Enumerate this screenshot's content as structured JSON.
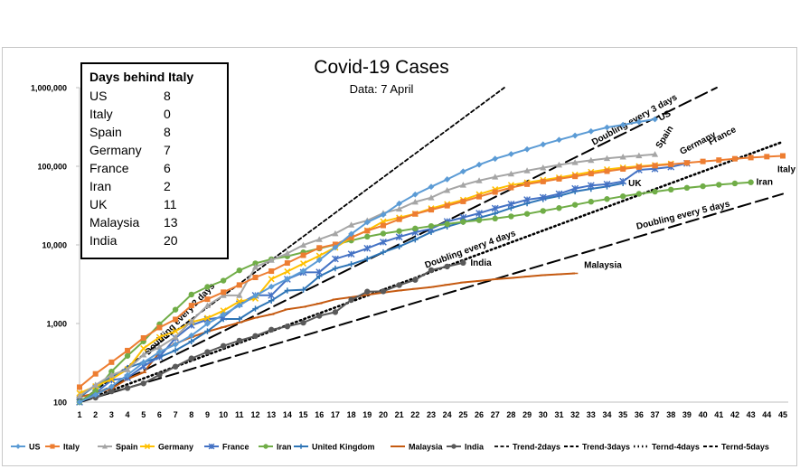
{
  "chart_data": {
    "type": "line",
    "title": "Covid-19 Cases",
    "subtitle": "Data: 7 April",
    "xlabel": "",
    "ylabel": "",
    "yscale": "log",
    "ylim": [
      100,
      1000000
    ],
    "xlim": [
      1,
      45
    ],
    "x": [
      1,
      2,
      3,
      4,
      5,
      6,
      7,
      8,
      9,
      10,
      11,
      12,
      13,
      14,
      15,
      16,
      17,
      18,
      19,
      20,
      21,
      22,
      23,
      24,
      25,
      26,
      27,
      28,
      29,
      30,
      31,
      32,
      33,
      34,
      35,
      36,
      37,
      38,
      39,
      40,
      41,
      42,
      43,
      44,
      45
    ],
    "y_ticks": [
      {
        "value": 100,
        "label": "100"
      },
      {
        "value": 1000,
        "label": "1,000"
      },
      {
        "value": 10000,
        "label": "10,000"
      },
      {
        "value": 100000,
        "label": "100,000"
      },
      {
        "value": 1000000,
        "label": "1,000,000"
      }
    ],
    "series": [
      {
        "name": "US",
        "color": "#5B9BD5",
        "marker": "diamond",
        "label": "US",
        "x": [
          1,
          2,
          3,
          4,
          5,
          6,
          7,
          8,
          9,
          10,
          11,
          12,
          13,
          14,
          15,
          16,
          17,
          18,
          19,
          20,
          21,
          22,
          23,
          24,
          25,
          26,
          27,
          28,
          29,
          30,
          31,
          32,
          33,
          34,
          35,
          36,
          37
        ],
        "values": [
          100,
          124,
          158,
          221,
          319,
          435,
          541,
          704,
          994,
          1301,
          1697,
          2247,
          2943,
          3680,
          4663,
          6411,
          9259,
          13789,
          19383,
          24207,
          33546,
          43734,
          54856,
          68211,
          85840,
          104686,
          124686,
          143025,
          164620,
          189618,
          216721,
          245540,
          278458,
          312245,
          337072,
          366667,
          396223
        ]
      },
      {
        "name": "Italy",
        "color": "#ED7D31",
        "marker": "square",
        "label": "Italy",
        "x": [
          1,
          2,
          3,
          4,
          5,
          6,
          7,
          8,
          9,
          10,
          11,
          12,
          13,
          14,
          15,
          16,
          17,
          18,
          19,
          20,
          21,
          22,
          23,
          24,
          25,
          26,
          27,
          28,
          29,
          30,
          31,
          32,
          33,
          34,
          35,
          36,
          37,
          38,
          39,
          40,
          41,
          42,
          43,
          44,
          45
        ],
        "values": [
          155,
          229,
          322,
          453,
          655,
          888,
          1128,
          1694,
          2036,
          2502,
          3089,
          3858,
          4636,
          5883,
          7375,
          9172,
          10149,
          12462,
          15113,
          17660,
          21157,
          24747,
          27980,
          31506,
          35713,
          41035,
          47021,
          53578,
          59138,
          63927,
          69176,
          74386,
          80589,
          86498,
          92472,
          97689,
          101739,
          105792,
          110574,
          115242,
          119827,
          124632,
          128948,
          132547,
          135586
        ]
      },
      {
        "name": "Spain",
        "color": "#A5A5A5",
        "marker": "triangle",
        "label": "Spain",
        "x": [
          1,
          2,
          3,
          4,
          5,
          6,
          7,
          8,
          9,
          10,
          11,
          12,
          13,
          14,
          15,
          16,
          17,
          18,
          19,
          20,
          21,
          22,
          23,
          24,
          25,
          26,
          27,
          28,
          29,
          30,
          31,
          32,
          33,
          34,
          35,
          36,
          37
        ],
        "values": [
          120,
          165,
          222,
          259,
          400,
          500,
          673,
          1073,
          1695,
          2277,
          2277,
          5232,
          6391,
          7798,
          9942,
          11748,
          13910,
          17963,
          20410,
          25374,
          28603,
          35136,
          39885,
          49515,
          57786,
          65719,
          73235,
          80110,
          87956,
          95923,
          104118,
          112065,
          119199,
          126168,
          131646,
          136675,
          141942
        ]
      },
      {
        "name": "Germany",
        "color": "#FFC000",
        "marker": "x",
        "label": "Germany",
        "x": [
          1,
          2,
          3,
          4,
          5,
          6,
          7,
          8,
          9,
          10,
          11,
          12,
          13,
          14,
          15,
          16,
          17,
          18,
          19,
          20,
          21,
          22,
          23,
          24,
          25,
          26,
          27,
          28,
          29,
          30,
          31,
          32,
          33,
          34,
          35,
          36,
          37,
          38
        ],
        "values": [
          130,
          159,
          196,
          262,
          482,
          670,
          799,
          1040,
          1176,
          1457,
          1908,
          2078,
          3675,
          4585,
          5795,
          7272,
          9257,
          12327,
          15320,
          19848,
          22213,
          24873,
          29056,
          32986,
          37323,
          43938,
          50871,
          57695,
          62095,
          66885,
          71808,
          77872,
          84794,
          91159,
          96092,
          100123,
          103374,
          107663
        ]
      },
      {
        "name": "France",
        "color": "#4472C4",
        "marker": "star",
        "label": "France",
        "x": [
          1,
          2,
          3,
          4,
          5,
          6,
          7,
          8,
          9,
          10,
          11,
          12,
          13,
          14,
          15,
          16,
          17,
          18,
          19,
          20,
          21,
          22,
          23,
          24,
          25,
          26,
          27,
          28,
          29,
          30,
          31,
          32,
          33,
          34,
          35,
          36,
          37,
          38,
          39
        ],
        "values": [
          100,
          130,
          191,
          204,
          285,
          377,
          653,
          949,
          1126,
          1209,
          1784,
          2281,
          2281,
          3661,
          4469,
          4499,
          6633,
          7652,
          9043,
          10871,
          12612,
          14459,
          16018,
          19856,
          22304,
          25233,
          29155,
          32964,
          37575,
          40174,
          44550,
          52128,
          56989,
          59105,
          64338,
          89953,
          92839,
          98010,
          109069
        ]
      },
      {
        "name": "Iran",
        "color": "#70AD47",
        "marker": "circle",
        "label": "Iran",
        "x": [
          1,
          2,
          3,
          4,
          5,
          6,
          7,
          8,
          9,
          10,
          11,
          12,
          13,
          14,
          15,
          16,
          17,
          18,
          19,
          20,
          21,
          22,
          23,
          24,
          25,
          26,
          27,
          28,
          29,
          30,
          31,
          32,
          33,
          34,
          35,
          36,
          37,
          38,
          39,
          40,
          41,
          42,
          43
        ],
        "values": [
          100,
          139,
          245,
          388,
          593,
          978,
          1501,
          2336,
          2922,
          3513,
          4747,
          5823,
          6566,
          7161,
          8042,
          9000,
          10075,
          11364,
          12729,
          13938,
          14991,
          16169,
          17361,
          18407,
          19644,
          20610,
          21638,
          23049,
          24811,
          27017,
          29406,
          32332,
          35408,
          38309,
          41495,
          44605,
          47593,
          50468,
          53183,
          55743,
          58226,
          60500,
          62589
        ]
      },
      {
        "name": "United Kingdom",
        "color": "#2E75B6",
        "marker": "plus",
        "label": "UK",
        "x": [
          1,
          2,
          3,
          4,
          5,
          6,
          7,
          8,
          9,
          10,
          11,
          12,
          13,
          14,
          15,
          16,
          17,
          18,
          19,
          20,
          21,
          22,
          23,
          24,
          25,
          26,
          27,
          28,
          29,
          30,
          31,
          32,
          33,
          34,
          35
        ],
        "values": [
          115,
          163,
          206,
          273,
          321,
          373,
          456,
          590,
          798,
          1140,
          1140,
          1543,
          1950,
          2626,
          2689,
          3983,
          5018,
          5683,
          6650,
          8077,
          9529,
          11658,
          14543,
          17089,
          19522,
          22141,
          25150,
          29474,
          33718,
          38168,
          41903,
          47806,
          51608,
          55242,
          60733
        ]
      },
      {
        "name": "Malaysia",
        "color": "#C55A11",
        "marker": "dash",
        "label": "Malaysia",
        "x": [
          1,
          2,
          3,
          4,
          5,
          6,
          7,
          8,
          9,
          10,
          11,
          12,
          13,
          14,
          15,
          16,
          17,
          18,
          19,
          20,
          21,
          22,
          23,
          24,
          25,
          26,
          27,
          28,
          29,
          30,
          31,
          32
        ],
        "values": [
          117,
          129,
          149,
          197,
          238,
          428,
          553,
          673,
          790,
          900,
          1030,
          1183,
          1306,
          1518,
          1624,
          1796,
          2031,
          2161,
          2320,
          2470,
          2626,
          2766,
          2908,
          3116,
          3333,
          3483,
          3662,
          3793,
          3963,
          4119,
          4228,
          4346
        ]
      },
      {
        "name": "India",
        "color": "#595959",
        "marker": "circle",
        "label": "India",
        "x": [
          1,
          2,
          3,
          4,
          5,
          6,
          7,
          8,
          9,
          10,
          11,
          12,
          13,
          14,
          15,
          16,
          17,
          18,
          19,
          20,
          21,
          22,
          23,
          24,
          25
        ],
        "values": [
          107,
          114,
          137,
          151,
          173,
          223,
          283,
          360,
          434,
          519,
          606,
          694,
          834,
          918,
          1024,
          1251,
          1397,
          1998,
          2543,
          2567,
          3082,
          3588,
          4778,
          5311,
          5916
        ]
      }
    ],
    "trends": [
      {
        "name": "Trend-2days",
        "doubling_days": 2,
        "style": "dash-thin",
        "label": "Doubling every 2 days"
      },
      {
        "name": "Trend-3days",
        "doubling_days": 3,
        "style": "dash-long",
        "label": "Doubling every 3 days"
      },
      {
        "name": "Ternd-4days",
        "doubling_days": 4,
        "style": "dot",
        "label": "Doubling every 4 days"
      },
      {
        "name": "Ternd-5days",
        "doubling_days": 5,
        "style": "dash-long",
        "label": "Doubling every 5 days"
      }
    ],
    "legend": {
      "placement": "bottom",
      "entries": [
        "US",
        "Italy",
        "Spain",
        "Germany",
        "France",
        "Iran",
        "United Kingdom",
        "Malaysia",
        "India",
        "Trend-2days",
        "Trend-3days",
        "Ternd-4days",
        "Ternd-5days"
      ]
    },
    "grid": false
  },
  "days_behind": {
    "title": "Days behind Italy",
    "rows": [
      {
        "country": "US",
        "days": "8"
      },
      {
        "country": "Italy",
        "days": "0"
      },
      {
        "country": "Spain",
        "days": "8"
      },
      {
        "country": "Germany",
        "days": "7"
      },
      {
        "country": "France",
        "days": "6"
      },
      {
        "country": "Iran",
        "days": "2"
      },
      {
        "country": "UK",
        "days": "11"
      },
      {
        "country": "Malaysia",
        "days": "13"
      },
      {
        "country": "India",
        "days": "20"
      }
    ]
  }
}
